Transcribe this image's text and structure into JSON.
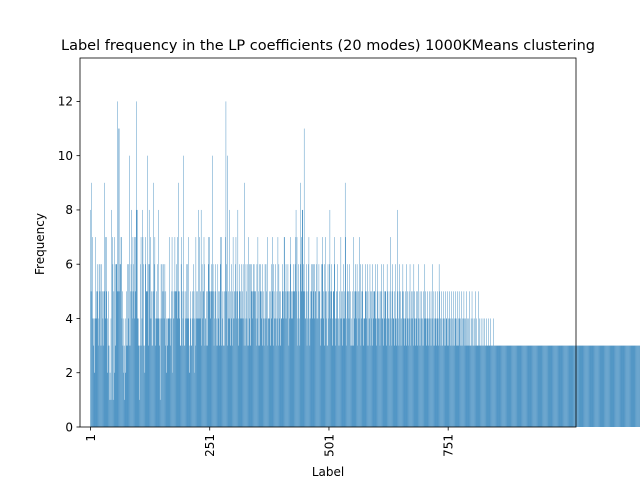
{
  "chart_data": {
    "type": "bar",
    "title": "Label frequency in the LP coefficients (20 modes) 1000KMeans clustering",
    "xlabel": "Label",
    "ylabel": "Frequency",
    "xlim": [
      -21,
      1019
    ],
    "ylim": [
      0,
      13.6
    ],
    "x_ticks": [
      1,
      251,
      501,
      751
    ],
    "x_tick_labels": [
      "1",
      "251",
      "501",
      "751"
    ],
    "y_ticks": [
      0,
      2,
      4,
      6,
      8,
      10,
      12
    ],
    "y_tick_labels": [
      "0",
      "2",
      "4",
      "6",
      "8",
      "10",
      "12"
    ],
    "bar_color": "#1f77b4",
    "grid": false,
    "categories_start": 1,
    "values": [
      8,
      5,
      9,
      5,
      7,
      4,
      4,
      3,
      4,
      2,
      4,
      7,
      5,
      4,
      6,
      5,
      4,
      3,
      6,
      5,
      6,
      3,
      5,
      6,
      3,
      5,
      4,
      3,
      5,
      9,
      5,
      7,
      4,
      5,
      7,
      2,
      4,
      3,
      5,
      3,
      1,
      2,
      1,
      4,
      8,
      1,
      7,
      6,
      1,
      5,
      2,
      7,
      6,
      3,
      6,
      6,
      5,
      12,
      5,
      11,
      11,
      5,
      6,
      6,
      7,
      7,
      4,
      5,
      3,
      2,
      4,
      1,
      3,
      4,
      2,
      5,
      3,
      3,
      6,
      4,
      6,
      3,
      10,
      3,
      5,
      6,
      8,
      5,
      4,
      7,
      6,
      5,
      7,
      4,
      5,
      7,
      8,
      12,
      4,
      8,
      3,
      4,
      3,
      1,
      3,
      6,
      7,
      3,
      4,
      8,
      7,
      6,
      3,
      3,
      2,
      7,
      6,
      5,
      5,
      10,
      5,
      6,
      3,
      8,
      6,
      4,
      7,
      4,
      5,
      3,
      3,
      5,
      9,
      5,
      6,
      7,
      4,
      3,
      4,
      5,
      4,
      6,
      8,
      4,
      4,
      3,
      1,
      4,
      6,
      4,
      6,
      5,
      4,
      6,
      5,
      4,
      6,
      3,
      5,
      2,
      4,
      3,
      4,
      4,
      4,
      7,
      4,
      3,
      4,
      4,
      5,
      7,
      2,
      5,
      4,
      4,
      5,
      7,
      5,
      5,
      6,
      5,
      4,
      7,
      5,
      9,
      4,
      5,
      3,
      3,
      6,
      7,
      5,
      3,
      4,
      10,
      5,
      3,
      3,
      4,
      5,
      4,
      6,
      6,
      4,
      4,
      7,
      2,
      3,
      4,
      5,
      3,
      3,
      4,
      5,
      4,
      6,
      5,
      2,
      4,
      3,
      7,
      5,
      4,
      4,
      5,
      8,
      4,
      4,
      7,
      5,
      4,
      8,
      3,
      6,
      4,
      5,
      5,
      7,
      6,
      3,
      4,
      4,
      5,
      3,
      3,
      5,
      7,
      6,
      7,
      5,
      4,
      5,
      5,
      6,
      5,
      10,
      6,
      5,
      3,
      4,
      5,
      6,
      5,
      3,
      4,
      3,
      6,
      5,
      4,
      5,
      3,
      6,
      7,
      3,
      7,
      5,
      4,
      3,
      3,
      5,
      3,
      5,
      7,
      12,
      6,
      5,
      10,
      3,
      4,
      5,
      4,
      8,
      5,
      3,
      4,
      6,
      5,
      3,
      7,
      4,
      4,
      5,
      5,
      6,
      7,
      4,
      5,
      5,
      8,
      3,
      4,
      5,
      6,
      4,
      5,
      6,
      4,
      4,
      5,
      6,
      4,
      3,
      9,
      4,
      3,
      6,
      5,
      4,
      3,
      6,
      7,
      3,
      4,
      6,
      3,
      6,
      6,
      5,
      5,
      4,
      5,
      6,
      6,
      5,
      5,
      5,
      4,
      3,
      6,
      4,
      7,
      5,
      3,
      3,
      6,
      5,
      6,
      4,
      5,
      6,
      3,
      5,
      4,
      3,
      4,
      6,
      4,
      6,
      5,
      4,
      7,
      3,
      4,
      4,
      5,
      4,
      3,
      5,
      6,
      4,
      5,
      7,
      3,
      6,
      5,
      4,
      4,
      6,
      4,
      3,
      5,
      4,
      7,
      3,
      6,
      4,
      5,
      5,
      3,
      4,
      4,
      6,
      5,
      4,
      5,
      7,
      7,
      4,
      5,
      6,
      4,
      5,
      5,
      6,
      5,
      3,
      4,
      5,
      6,
      7,
      4,
      5,
      5,
      4,
      6,
      5,
      5,
      5,
      6,
      7,
      8,
      5,
      7,
      3,
      4,
      6,
      5,
      4,
      3,
      9,
      6,
      7,
      5,
      8,
      8,
      5,
      6,
      11,
      5,
      4,
      4,
      5,
      6,
      3,
      4,
      5,
      6,
      7,
      4,
      3,
      4,
      5,
      6,
      5,
      4,
      6,
      6,
      5,
      4,
      6,
      5,
      5,
      4,
      6,
      7,
      4,
      4,
      5,
      6,
      5,
      5,
      4,
      3,
      6,
      4,
      7,
      6,
      5,
      4,
      3,
      6,
      5,
      7,
      4,
      5,
      3,
      3,
      6,
      4,
      5,
      6,
      8,
      4,
      5,
      5,
      6,
      4,
      3,
      5,
      5,
      7,
      6,
      4,
      3,
      4,
      5,
      5,
      6,
      4,
      3,
      4,
      5,
      3,
      4,
      7,
      5,
      4,
      3,
      5,
      6,
      4,
      4,
      5,
      9,
      7,
      3,
      4,
      5,
      6,
      5,
      4,
      5,
      6,
      4,
      5,
      3,
      3,
      4,
      3,
      5,
      3,
      7,
      4,
      5,
      5,
      6,
      5,
      4,
      6,
      3,
      5,
      4,
      5,
      7,
      4,
      6,
      3,
      4,
      5,
      5,
      6,
      4,
      3,
      4,
      4,
      6,
      5,
      4,
      5,
      3,
      6,
      5,
      3,
      4,
      4,
      6,
      5,
      3,
      5,
      4,
      6,
      3,
      5,
      4,
      5,
      5,
      4,
      6,
      3,
      4,
      5,
      6,
      4,
      4,
      5,
      4,
      3,
      5,
      4,
      6,
      5,
      4,
      4,
      3,
      6,
      5,
      4,
      5,
      5,
      3,
      4,
      6,
      5,
      4,
      4,
      5,
      3,
      4,
      7,
      5,
      4,
      3,
      6,
      5,
      4,
      4,
      3,
      5,
      4,
      6,
      4,
      3,
      5,
      8,
      3,
      4,
      5,
      6,
      3,
      5,
      4,
      4,
      3,
      5,
      6,
      4,
      5,
      3,
      4,
      5,
      4,
      3,
      6,
      4,
      5,
      4,
      3,
      5,
      4,
      6,
      3,
      4,
      5,
      4,
      4,
      5,
      3,
      6,
      4,
      5,
      3,
      4,
      5,
      4,
      3,
      5,
      4,
      6,
      3,
      4,
      5,
      3,
      4,
      5,
      4,
      3,
      4,
      5,
      3,
      4,
      6,
      4,
      5,
      3,
      4,
      4,
      5,
      3,
      4,
      4,
      5,
      3,
      4,
      5,
      3,
      4,
      6,
      4,
      3,
      5,
      4,
      3,
      4,
      5,
      3,
      4,
      4,
      5,
      3,
      4,
      6,
      5,
      3,
      4,
      4,
      5,
      3,
      3,
      4,
      5,
      4,
      3,
      4,
      5,
      3,
      4,
      4,
      3,
      5,
      4,
      3,
      4,
      5,
      3,
      4,
      3,
      5,
      4,
      3,
      4,
      5,
      3,
      3,
      4,
      5,
      4,
      3,
      4,
      5,
      3,
      4,
      3,
      5,
      4,
      3,
      4,
      3,
      5,
      3,
      4,
      3,
      4,
      5,
      3,
      4,
      3,
      4,
      3,
      5,
      3,
      4,
      3,
      4,
      3,
      5,
      3,
      3,
      4,
      3,
      5,
      3,
      4,
      3,
      3,
      4,
      3,
      5,
      3,
      3,
      4,
      3,
      3,
      5,
      3,
      3,
      4,
      3,
      3,
      4,
      3,
      3,
      3,
      4,
      3,
      3,
      4,
      3,
      3,
      3,
      4,
      3,
      3,
      3,
      4,
      3,
      3,
      3,
      3,
      4,
      3,
      3,
      3,
      3,
      3,
      4,
      3,
      3,
      3,
      3,
      3,
      3,
      3,
      3,
      3,
      3,
      3,
      3,
      3,
      3,
      3,
      3,
      3,
      3,
      3,
      3,
      3,
      3,
      3,
      3,
      3,
      3,
      3,
      3,
      3,
      3,
      3,
      3,
      3,
      3,
      3,
      3,
      3,
      3,
      3,
      3,
      3,
      3,
      3,
      3,
      3,
      3,
      3,
      3,
      3,
      3,
      3,
      3,
      3,
      3,
      3,
      3,
      3,
      3,
      3,
      3,
      3,
      3,
      3,
      3,
      3,
      3,
      3,
      3,
      3,
      3,
      3,
      3,
      3,
      3,
      3,
      3,
      3,
      3,
      3,
      3,
      3,
      3,
      3,
      3,
      3,
      3,
      3,
      3,
      3,
      3,
      3,
      3,
      3,
      3,
      3,
      3,
      3,
      3,
      3,
      3,
      3,
      3,
      3,
      3,
      3,
      3,
      3,
      3,
      3,
      3,
      3,
      3,
      3,
      3,
      3,
      3,
      3,
      3,
      3,
      3,
      3,
      3,
      3,
      3,
      3,
      3,
      3,
      3,
      3,
      3,
      3,
      3,
      3,
      3,
      3,
      3,
      3,
      3,
      3,
      3,
      3,
      3,
      3,
      3,
      3,
      3,
      3,
      3,
      3,
      3,
      3,
      3,
      3,
      3,
      3,
      3,
      3,
      3,
      3,
      3,
      3,
      3,
      3,
      3,
      3,
      3,
      3,
      3,
      3,
      3,
      3,
      3,
      3,
      3,
      3,
      3,
      3,
      3,
      3,
      3,
      3,
      3,
      3,
      3,
      3,
      3,
      3,
      3,
      3,
      3,
      3,
      3,
      3,
      3,
      3,
      3,
      3,
      3,
      3,
      3,
      3,
      3,
      3,
      3,
      3,
      3,
      3,
      3,
      3,
      3,
      3,
      3,
      3,
      3,
      3,
      3,
      3,
      3,
      3,
      3,
      3,
      3,
      3,
      3,
      3,
      3,
      3,
      3,
      3,
      3,
      3,
      3,
      3,
      3,
      3,
      3,
      3,
      3,
      3,
      3,
      3,
      3,
      3,
      3,
      3,
      3,
      3,
      3,
      3,
      3,
      3,
      3,
      3,
      3,
      3,
      3,
      3,
      3,
      3,
      3,
      3,
      3,
      3,
      3,
      3,
      3,
      3,
      3,
      3,
      3,
      3,
      3,
      3,
      3,
      3,
      3,
      3,
      3,
      3,
      3,
      3,
      3,
      3,
      3,
      3,
      3,
      3,
      3,
      3,
      3,
      3,
      3,
      3,
      3,
      3,
      3,
      3,
      3,
      3,
      3,
      3,
      3,
      3,
      3,
      3,
      3,
      3,
      3,
      3,
      3,
      3,
      3,
      3,
      3,
      3,
      3,
      3,
      3,
      3,
      3,
      3
    ]
  }
}
